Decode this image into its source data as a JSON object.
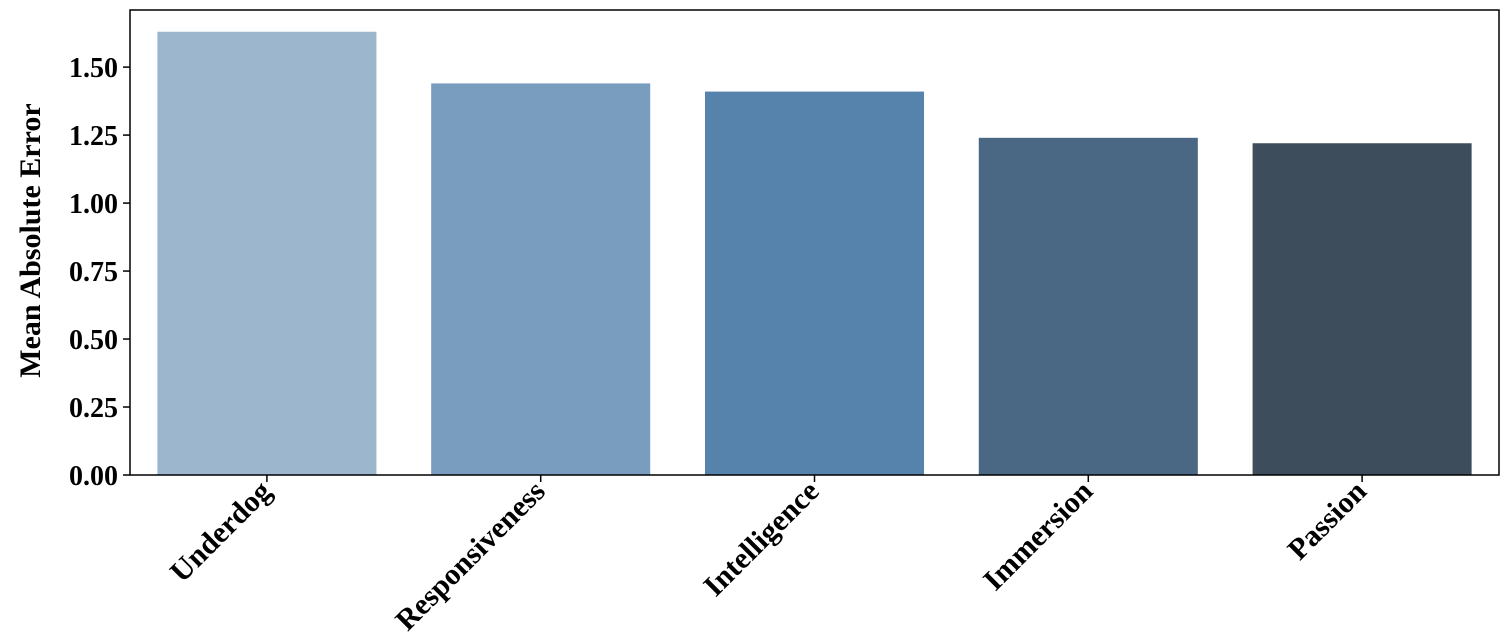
{
  "chart_data": {
    "type": "bar",
    "title": "",
    "xlabel": "",
    "ylabel": "Mean Absolute Error",
    "categories": [
      "Underdog",
      "Responsiveness",
      "Intelligence",
      "Immersion",
      "Passion"
    ],
    "values": [
      1.63,
      1.44,
      1.41,
      1.24,
      1.22
    ],
    "colors": [
      "#9bb6cd",
      "#789dbf",
      "#5683ac",
      "#4a6784",
      "#3e4d5c"
    ],
    "ylim": [
      0,
      1.71
    ],
    "yticks": [
      0.0,
      0.25,
      0.5,
      0.75,
      1.0,
      1.25,
      1.5
    ],
    "ytick_labels": [
      "0.00",
      "0.25",
      "0.50",
      "0.75",
      "1.00",
      "1.25",
      "1.50"
    ],
    "grid": false,
    "legend": "none"
  }
}
